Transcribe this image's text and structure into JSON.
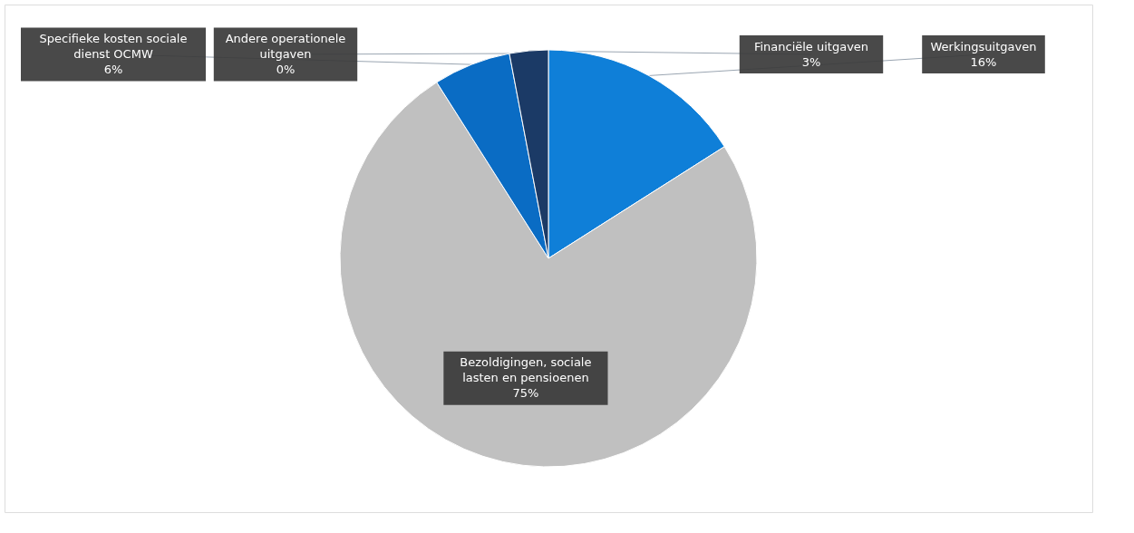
{
  "chart_data": {
    "type": "pie",
    "categories": [
      "Werkingsuitgaven",
      "Bezoldigingen, sociale lasten en pensioenen",
      "Specifieke kosten sociale dienst OCMW",
      "Andere operationele uitgaven",
      "Financiële uitgaven"
    ],
    "values": [
      16,
      75,
      6,
      0,
      3
    ],
    "value_labels": [
      "16%",
      "75%",
      "6%",
      "0%",
      "3%"
    ],
    "colors": [
      "#0f7fd8",
      "#c0c0c0",
      "#0a6cc4",
      "#1a4f86",
      "#1b3a66"
    ],
    "legend": false
  }
}
